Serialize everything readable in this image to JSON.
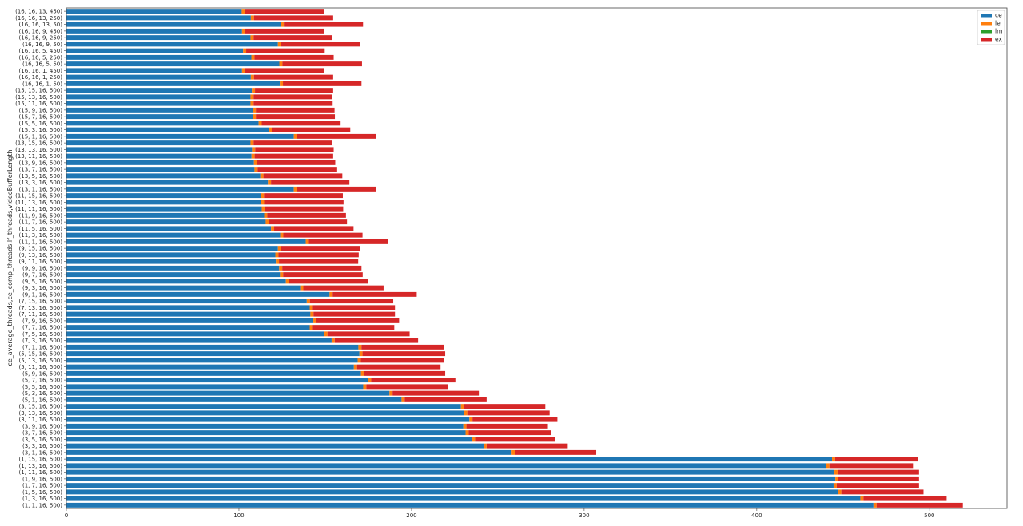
{
  "chart_data": {
    "type": "bar",
    "orientation": "horizontal",
    "stacked": true,
    "title": "",
    "xlabel": "",
    "ylabel": "ce_average_threads,ce_comp_threads,lf_threads,videoBufferLength",
    "xlim": [
      0,
      545
    ],
    "xticks": [
      0,
      100,
      200,
      300,
      400,
      500
    ],
    "grid": false,
    "legend_position": "top-right",
    "categories": [
      "(16, 16, 13, 450)",
      "(16, 16, 13, 250)",
      "(16, 16, 13, 50)",
      "(16, 16, 9, 450)",
      "(16, 16, 9, 250)",
      "(16, 16, 9, 50)",
      "(16, 16, 5, 450)",
      "(16, 16, 5, 250)",
      "(16, 16, 5, 50)",
      "(16, 16, 1, 450)",
      "(16, 16, 1, 250)",
      "(16, 16, 1, 50)",
      "(15, 15, 16, 500)",
      "(15, 13, 16, 500)",
      "(15, 11, 16, 500)",
      "(15, 9, 16, 500)",
      "(15, 7, 16, 500)",
      "(15, 5, 16, 500)",
      "(15, 3, 16, 500)",
      "(15, 1, 16, 500)",
      "(13, 15, 16, 500)",
      "(13, 13, 16, 500)",
      "(13, 11, 16, 500)",
      "(13, 9, 16, 500)",
      "(13, 7, 16, 500)",
      "(13, 5, 16, 500)",
      "(13, 3, 16, 500)",
      "(13, 1, 16, 500)",
      "(11, 15, 16, 500)",
      "(11, 13, 16, 500)",
      "(11, 11, 16, 500)",
      "(11, 9, 16, 500)",
      "(11, 7, 16, 500)",
      "(11, 5, 16, 500)",
      "(11, 3, 16, 500)",
      "(11, 1, 16, 500)",
      "(9, 15, 16, 500)",
      "(9, 13, 16, 500)",
      "(9, 11, 16, 500)",
      "(9, 9, 16, 500)",
      "(9, 7, 16, 500)",
      "(9, 5, 16, 500)",
      "(9, 3, 16, 500)",
      "(9, 1, 16, 500)",
      "(7, 15, 16, 500)",
      "(7, 13, 16, 500)",
      "(7, 11, 16, 500)",
      "(7, 9, 16, 500)",
      "(7, 7, 16, 500)",
      "(7, 5, 16, 500)",
      "(7, 3, 16, 500)",
      "(7, 1, 16, 500)",
      "(5, 15, 16, 500)",
      "(5, 13, 16, 500)",
      "(5, 11, 16, 500)",
      "(5, 9, 16, 500)",
      "(5, 7, 16, 500)",
      "(5, 5, 16, 500)",
      "(5, 3, 16, 500)",
      "(5, 1, 16, 500)",
      "(3, 15, 16, 500)",
      "(3, 13, 16, 500)",
      "(3, 11, 16, 500)",
      "(3, 9, 16, 500)",
      "(3, 7, 16, 500)",
      "(3, 5, 16, 500)",
      "(3, 3, 16, 500)",
      "(3, 1, 16, 500)",
      "(1, 15, 16, 500)",
      "(1, 13, 16, 500)",
      "(1, 11, 16, 500)",
      "(1, 9, 16, 500)",
      "(1, 7, 16, 500)",
      "(1, 5, 16, 500)",
      "(1, 3, 16, 500)",
      "(1, 1, 16, 500)"
    ],
    "series": [
      {
        "name": "ce",
        "color": "#1f77b4",
        "values": [
          101.6,
          106.9,
          124.2,
          101.8,
          106.7,
          122.6,
          102.4,
          107.2,
          123.4,
          101.8,
          106.9,
          123.7,
          107.5,
          106.7,
          106.7,
          108.0,
          108.0,
          111.4,
          117.2,
          131.8,
          106.7,
          107.6,
          107.3,
          108.7,
          109.0,
          112.4,
          116.8,
          131.8,
          112.7,
          112.8,
          113.2,
          114.6,
          115.5,
          118.6,
          123.9,
          138.7,
          122.6,
          121.1,
          121.4,
          123.3,
          123.8,
          127.2,
          135.5,
          152.5,
          139.3,
          141.0,
          141.4,
          143.1,
          141.0,
          149.5,
          153.7,
          169.2,
          169.8,
          168.8,
          166.6,
          170.7,
          174.8,
          172.0,
          187.2,
          194.2,
          228.6,
          230.5,
          233.5,
          230.0,
          231.3,
          235.0,
          241.7,
          258.0,
          443.6,
          440.3,
          445.0,
          445.5,
          444.5,
          447.2,
          460.0,
          467.6
        ]
      },
      {
        "name": "le",
        "color": "#ff7f0e",
        "values": [
          1.8,
          1.8,
          1.8,
          1.8,
          1.8,
          1.8,
          1.8,
          1.8,
          1.8,
          1.8,
          1.8,
          1.8,
          1.8,
          1.8,
          1.8,
          1.8,
          1.8,
          1.8,
          1.8,
          1.8,
          1.8,
          1.8,
          1.8,
          1.8,
          1.8,
          1.8,
          1.8,
          1.8,
          1.8,
          1.8,
          1.8,
          1.8,
          1.8,
          1.8,
          1.8,
          1.8,
          1.8,
          1.8,
          1.8,
          1.8,
          1.8,
          1.8,
          1.8,
          1.8,
          1.8,
          1.8,
          1.8,
          1.8,
          1.8,
          1.8,
          1.8,
          1.8,
          1.8,
          1.8,
          1.8,
          1.8,
          1.8,
          1.8,
          1.8,
          1.8,
          1.8,
          1.8,
          1.8,
          1.8,
          1.8,
          1.8,
          1.8,
          1.8,
          1.8,
          1.8,
          1.8,
          1.8,
          1.8,
          1.8,
          1.8,
          1.8
        ]
      },
      {
        "name": "lm",
        "color": "#2ca02c",
        "values": [
          0,
          0,
          0,
          0,
          0,
          0,
          0,
          0,
          0,
          0,
          0,
          0,
          0,
          0,
          0,
          0,
          0,
          0,
          0,
          0,
          0,
          0,
          0,
          0,
          0,
          0,
          0,
          0,
          0,
          0,
          0,
          0,
          0,
          0,
          0,
          0,
          0,
          0,
          0,
          0,
          0,
          0,
          0,
          0,
          0,
          0,
          0,
          0,
          0,
          0,
          0,
          0,
          0,
          0,
          0,
          0,
          0,
          0,
          0,
          0,
          0,
          0,
          0,
          0,
          0,
          0,
          0,
          0,
          0,
          0,
          0,
          0,
          0,
          0,
          0,
          0
        ]
      },
      {
        "name": "ex",
        "color": "#d62728",
        "values": [
          45.9,
          45.9,
          45.9,
          45.7,
          45.6,
          45.8,
          45.5,
          45.9,
          46.1,
          45.7,
          45.9,
          45.5,
          45.3,
          45.5,
          45.8,
          45.6,
          45.8,
          45.7,
          45.5,
          45.7,
          45.6,
          45.5,
          45.5,
          45.3,
          46.1,
          45.7,
          45.4,
          45.7,
          45.7,
          46.0,
          45.4,
          45.6,
          45.3,
          46.0,
          45.9,
          45.8,
          45.7,
          46.5,
          45.9,
          45.9,
          46.1,
          45.8,
          46.5,
          48.7,
          48.3,
          47.6,
          47.2,
          47.9,
          47.2,
          47.6,
          48.3,
          47.8,
          47.9,
          48.2,
          48.4,
          47.0,
          48.8,
          47.2,
          50.0,
          47.5,
          47.1,
          47.7,
          49.2,
          47.2,
          47.9,
          46.2,
          47.0,
          47.2,
          47.9,
          48.4,
          47.2,
          46.7,
          47.7,
          47.6,
          48.2,
          50.0
        ]
      }
    ]
  }
}
